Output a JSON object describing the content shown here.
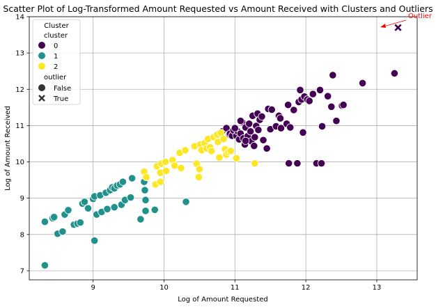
{
  "chart_data": {
    "type": "scatter",
    "title": "Scatter Plot of Log-Transformed Amount Requested vs Amount Received with Clusters and Outliers",
    "xlabel": "Log of Amount Requested",
    "ylabel": "Log of Amount Received",
    "xlim": [
      8.1,
      13.57
    ],
    "ylim": [
      6.75,
      14.0
    ],
    "xticks": [
      9,
      10,
      11,
      12,
      13
    ],
    "yticks": [
      7,
      8,
      9,
      10,
      11,
      12,
      13,
      14
    ],
    "grid": true,
    "legend_placement": "top-left",
    "legend": {
      "title": "Cluster",
      "hue_title": "cluster",
      "hue_entries": [
        "0",
        "1",
        "2"
      ],
      "style_title": "outlier",
      "style_entries": [
        "False",
        "True"
      ]
    },
    "colors": {
      "0": "#440154",
      "1": "#21918c",
      "2": "#fde725",
      "outlier_label": "#ff0000"
    },
    "annotation": {
      "text": "Outlier",
      "x": 13.3,
      "y": 13.7
    },
    "series": [
      {
        "name": "0",
        "marker": "circle",
        "points": [
          [
            10.82,
            10.84
          ],
          [
            10.88,
            10.93
          ],
          [
            10.92,
            10.76
          ],
          [
            10.93,
            10.78
          ],
          [
            10.96,
            10.72
          ],
          [
            10.98,
            10.87
          ],
          [
            11.02,
            10.72
          ],
          [
            11.04,
            10.84
          ],
          [
            11.06,
            10.62
          ],
          [
            11.08,
            10.78
          ],
          [
            11.1,
            11.1
          ],
          [
            11.12,
            10.65
          ],
          [
            11.14,
            10.48
          ],
          [
            11.15,
            10.95
          ],
          [
            11.18,
            10.71
          ],
          [
            11.2,
            11.05
          ],
          [
            11.22,
            10.84
          ],
          [
            11.23,
            10.57
          ],
          [
            11.25,
            11.27
          ],
          [
            11.27,
            10.44
          ],
          [
            11.28,
            10.68
          ],
          [
            11.3,
            10.99
          ],
          [
            11.32,
            11.33
          ],
          [
            11.33,
            10.88
          ],
          [
            11.35,
            11.16
          ],
          [
            11.38,
            11.25
          ],
          [
            11.4,
            10.6
          ],
          [
            11.45,
            10.37
          ],
          [
            11.47,
            11.46
          ],
          [
            11.5,
            10.9
          ],
          [
            11.52,
            11.44
          ],
          [
            11.58,
            10.98
          ],
          [
            11.62,
            11.27
          ],
          [
            11.64,
            11.2
          ],
          [
            11.65,
            10.93
          ],
          [
            11.73,
            11.05
          ],
          [
            11.75,
            11.57
          ],
          [
            11.76,
            9.96
          ],
          [
            11.78,
            10.95
          ],
          [
            11.83,
            11.43
          ],
          [
            11.88,
            9.96
          ],
          [
            11.9,
            11.65
          ],
          [
            11.92,
            11.98
          ],
          [
            11.94,
            11.72
          ],
          [
            11.96,
            10.81
          ],
          [
            11.98,
            11.8
          ],
          [
            12.02,
            11.72
          ],
          [
            12.05,
            11.68
          ],
          [
            12.1,
            11.87
          ],
          [
            12.15,
            9.96
          ],
          [
            12.2,
            11.98
          ],
          [
            12.22,
            9.96
          ],
          [
            12.23,
            10.98
          ],
          [
            12.31,
            11.81
          ],
          [
            12.36,
            11.52
          ],
          [
            12.38,
            12.39
          ],
          [
            12.43,
            11.13
          ],
          [
            12.51,
            11.55
          ],
          [
            12.53,
            11.57
          ],
          [
            12.8,
            12.17
          ],
          [
            13.25,
            12.44
          ],
          [
            11.0,
            10.93
          ],
          [
            11.08,
            11.13
          ],
          [
            11.15,
            10.58
          ]
        ]
      },
      {
        "name": "1",
        "marker": "circle",
        "points": [
          [
            8.32,
            7.15
          ],
          [
            8.32,
            8.35
          ],
          [
            8.43,
            8.45
          ],
          [
            8.45,
            8.48
          ],
          [
            8.5,
            8.02
          ],
          [
            8.57,
            8.08
          ],
          [
            8.6,
            8.55
          ],
          [
            8.65,
            8.67
          ],
          [
            8.73,
            8.27
          ],
          [
            8.78,
            8.3
          ],
          [
            8.82,
            8.33
          ],
          [
            8.85,
            8.85
          ],
          [
            8.88,
            8.9
          ],
          [
            8.93,
            8.72
          ],
          [
            9.0,
            8.98
          ],
          [
            9.02,
            7.83
          ],
          [
            9.02,
            9.05
          ],
          [
            9.05,
            8.55
          ],
          [
            9.1,
            9.08
          ],
          [
            9.12,
            8.62
          ],
          [
            9.18,
            9.15
          ],
          [
            9.2,
            8.7
          ],
          [
            9.24,
            9.22
          ],
          [
            9.27,
            9.3
          ],
          [
            9.3,
            9.27
          ],
          [
            9.3,
            8.75
          ],
          [
            9.34,
            9.35
          ],
          [
            9.38,
            9.38
          ],
          [
            9.4,
            8.82
          ],
          [
            9.42,
            9.45
          ],
          [
            9.45,
            8.95
          ],
          [
            9.53,
            9.02
          ],
          [
            9.55,
            9.55
          ],
          [
            9.67,
            8.42
          ],
          [
            9.72,
            9.45
          ],
          [
            9.73,
            9.22
          ],
          [
            9.74,
            8.95
          ],
          [
            9.74,
            8.65
          ],
          [
            9.87,
            8.68
          ],
          [
            10.31,
            8.9
          ]
        ]
      },
      {
        "name": "2",
        "marker": "circle",
        "points": [
          [
            9.72,
            9.73
          ],
          [
            9.75,
            9.58
          ],
          [
            9.88,
            9.38
          ],
          [
            9.9,
            9.88
          ],
          [
            9.95,
            9.45
          ],
          [
            9.95,
            9.7
          ],
          [
            9.96,
            9.95
          ],
          [
            10.02,
            10.0
          ],
          [
            10.03,
            9.75
          ],
          [
            10.12,
            10.05
          ],
          [
            10.15,
            9.9
          ],
          [
            10.22,
            10.25
          ],
          [
            10.24,
            9.83
          ],
          [
            10.3,
            10.32
          ],
          [
            10.43,
            10.43
          ],
          [
            10.46,
            9.95
          ],
          [
            10.49,
            9.58
          ],
          [
            10.5,
            9.8
          ],
          [
            10.51,
            10.48
          ],
          [
            10.53,
            10.32
          ],
          [
            10.57,
            10.52
          ],
          [
            10.6,
            10.37
          ],
          [
            10.62,
            10.63
          ],
          [
            10.65,
            10.4
          ],
          [
            10.67,
            10.3
          ],
          [
            10.7,
            10.68
          ],
          [
            10.75,
            10.75
          ],
          [
            10.76,
            10.55
          ],
          [
            10.78,
            10.12
          ],
          [
            10.8,
            10.8
          ],
          [
            10.84,
            10.63
          ],
          [
            10.86,
            10.35
          ],
          [
            10.88,
            10.2
          ],
          [
            10.91,
            10.27
          ],
          [
            10.94,
            10.3
          ],
          [
            11.02,
            10.1
          ],
          [
            11.28,
            9.96
          ]
        ]
      },
      {
        "name": "0",
        "marker": "x",
        "outlier": true,
        "points": [
          [
            13.3,
            13.7
          ]
        ]
      }
    ]
  }
}
